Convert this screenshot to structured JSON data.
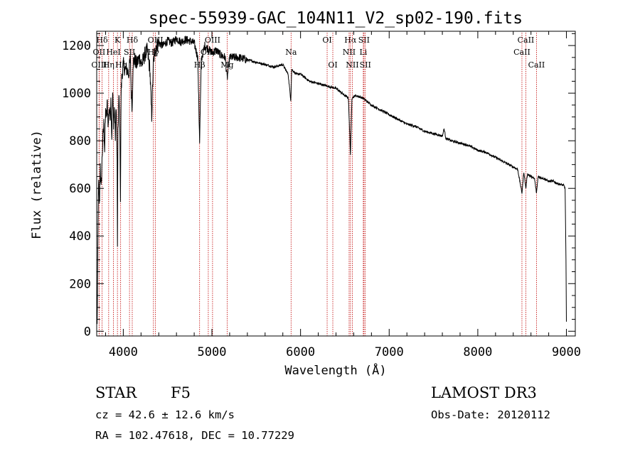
{
  "chart_data": {
    "type": "line",
    "title": "spec-55939-GAC_104N11_V2_sp02-190.fits",
    "xlabel": "Wavelength (Å)",
    "ylabel": "Flux (relative)",
    "xlim": [
      3700,
      9100
    ],
    "ylim": [
      -20,
      1260
    ],
    "xticks": [
      4000,
      5000,
      6000,
      7000,
      8000,
      9000
    ],
    "xtick_labels": [
      "4000",
      "5000",
      "6000",
      "7000",
      "8000",
      "9000"
    ],
    "yticks": [
      0,
      200,
      400,
      600,
      800,
      1000,
      1200
    ],
    "ytick_labels": [
      "0",
      "200",
      "400",
      "600",
      "800",
      "1000",
      "1200"
    ],
    "series": [
      {
        "name": "spectrum",
        "x": [
          3705,
          3712,
          3720,
          3730,
          3740,
          3750,
          3760,
          3770,
          3780,
          3790,
          3800,
          3810,
          3820,
          3830,
          3840,
          3850,
          3860,
          3870,
          3880,
          3890,
          3900,
          3910,
          3920,
          3930,
          3934,
          3940,
          3950,
          3960,
          3968,
          3975,
          3985,
          4000,
          4020,
          4040,
          4060,
          4080,
          4090,
          4101,
          4110,
          4130,
          4150,
          4180,
          4210,
          4240,
          4270,
          4300,
          4320,
          4340,
          4350,
          4370,
          4400,
          4450,
          4500,
          4550,
          4600,
          4650,
          4700,
          4750,
          4800,
          4840,
          4861,
          4880,
          4920,
          5000,
          5050,
          5100,
          5150,
          5172,
          5200,
          5300,
          5400,
          5500,
          5600,
          5700,
          5800,
          5860,
          5890,
          5900,
          5950,
          6000,
          6100,
          6200,
          6300,
          6400,
          6500,
          6540,
          6563,
          6580,
          6620,
          6700,
          6800,
          6900,
          7000,
          7100,
          7200,
          7300,
          7400,
          7500,
          7600,
          7620,
          7640,
          7700,
          7800,
          7900,
          8000,
          8100,
          8200,
          8300,
          8400,
          8450,
          8498,
          8520,
          8542,
          8560,
          8600,
          8640,
          8662,
          8680,
          8750,
          8800,
          8850,
          8900,
          8950,
          8970,
          8985,
          8995,
          9000
        ],
        "y": [
          20,
          300,
          640,
          520,
          700,
          590,
          720,
          810,
          870,
          760,
          920,
          900,
          960,
          860,
          940,
          900,
          970,
          810,
          1000,
          880,
          930,
          820,
          960,
          700,
          370,
          820,
          980,
          900,
          560,
          1000,
          1080,
          1120,
          1100,
          1100,
          1080,
          1140,
          1000,
          940,
          1130,
          1140,
          1120,
          1150,
          1120,
          1160,
          1180,
          1100,
          900,
          1130,
          1160,
          1200,
          1210,
          1200,
          1220,
          1210,
          1230,
          1215,
          1225,
          1220,
          1210,
          1150,
          800,
          1140,
          1200,
          1170,
          1180,
          1160,
          1150,
          1060,
          1150,
          1150,
          1140,
          1130,
          1120,
          1110,
          1120,
          1080,
          970,
          1100,
          1080,
          1080,
          1050,
          1040,
          1030,
          1020,
          990,
          980,
          740,
          980,
          990,
          980,
          950,
          930,
          910,
          890,
          870,
          860,
          840,
          830,
          820,
          850,
          810,
          800,
          790,
          780,
          760,
          750,
          730,
          710,
          690,
          680,
          580,
          670,
          600,
          660,
          650,
          640,
          580,
          650,
          640,
          630,
          630,
          620,
          615,
          612,
          600,
          300,
          40
        ]
      }
    ],
    "emission_lines": [
      {
        "label": "Hδ",
        "x": 3760,
        "row": 1
      },
      {
        "label": "OII",
        "x": 3727,
        "row": 2
      },
      {
        "label": "OIII",
        "x": 3727,
        "row": 3
      },
      {
        "label": "K",
        "x": 3934,
        "row": 1
      },
      {
        "label": "HeI",
        "x": 3889,
        "row": 2
      },
      {
        "label": "Hη",
        "x": 3835,
        "row": 3
      },
      {
        "label": "Hδ",
        "x": 4101,
        "row": 1
      },
      {
        "label": "SII",
        "x": 4070,
        "row": 2
      },
      {
        "label": "Hε",
        "x": 3970,
        "row": 3
      },
      {
        "label": "OIII",
        "x": 4363,
        "row": 1
      },
      {
        "label": "Hγ",
        "x": 4340,
        "row": 2
      },
      {
        "label": "Hβ",
        "x": 4861,
        "row": 3
      },
      {
        "label": "OIII",
        "x": 5007,
        "row": 1
      },
      {
        "label": "OIII",
        "x": 4959,
        "row": 2
      },
      {
        "label": "Mg",
        "x": 5172,
        "row": 3
      },
      {
        "label": "Na",
        "x": 5893,
        "row": 2
      },
      {
        "label": "OI",
        "x": 6300,
        "row": 1
      },
      {
        "label": "OI",
        "x": 6364,
        "row": 3
      },
      {
        "label": "Hα",
        "x": 6563,
        "row": 1
      },
      {
        "label": "SII",
        "x": 6716,
        "row": 1
      },
      {
        "label": "NII",
        "x": 6548,
        "row": 2
      },
      {
        "label": "Li",
        "x": 6708,
        "row": 2
      },
      {
        "label": "NII",
        "x": 6584,
        "row": 3
      },
      {
        "label": "SII",
        "x": 6731,
        "row": 3
      },
      {
        "label": "CaII",
        "x": 8542,
        "row": 1
      },
      {
        "label": "CaII",
        "x": 8498,
        "row": 2
      },
      {
        "label": "CaII",
        "x": 8662,
        "row": 3
      }
    ]
  },
  "info": {
    "object_class": "STAR",
    "subclass": "F5",
    "survey": "LAMOST DR3",
    "redshift": "cz = 42.6 ± 12.6 km/s",
    "obs_date": "Obs-Date: 20120112",
    "coords": "RA = 102.47618, DEC =  10.77229"
  },
  "colors": {
    "spectrum": "#000000",
    "line_markers": "#c00000",
    "axes": "#000000"
  }
}
